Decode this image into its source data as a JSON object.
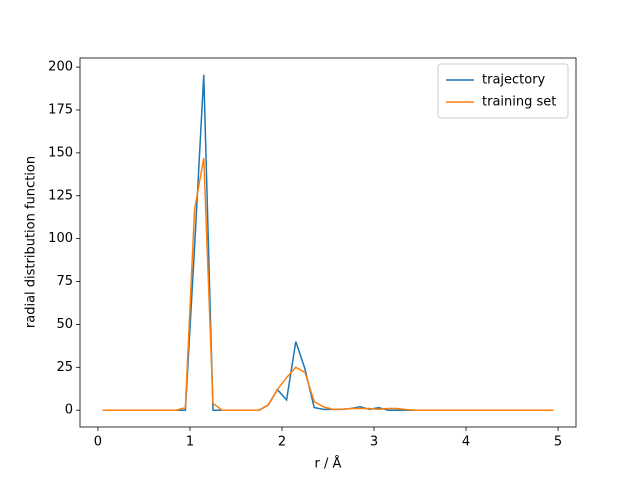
{
  "chart_data": {
    "type": "line",
    "xlabel": "r / Å",
    "ylabel": "radial distribution function",
    "x": [
      0.05,
      0.15,
      0.25,
      0.35,
      0.45,
      0.55,
      0.65,
      0.75,
      0.85,
      0.95,
      1.05,
      1.15,
      1.25,
      1.35,
      1.45,
      1.55,
      1.65,
      1.75,
      1.85,
      1.95,
      2.05,
      2.15,
      2.25,
      2.35,
      2.45,
      2.55,
      2.65,
      2.75,
      2.85,
      2.95,
      3.05,
      3.15,
      3.25,
      3.35,
      3.45,
      3.55,
      3.65,
      3.75,
      3.85,
      3.95,
      4.05,
      4.15,
      4.25,
      4.35,
      4.45,
      4.55,
      4.65,
      4.75,
      4.85,
      4.95
    ],
    "series": [
      {
        "name": "trajectory",
        "color": "#1f77b4",
        "values": [
          0,
          0,
          0,
          0,
          0,
          0,
          0,
          0,
          0,
          0,
          95,
          195.5,
          0,
          0,
          0,
          0,
          0,
          0,
          3,
          12,
          6,
          40,
          24,
          1.5,
          0.5,
          0.5,
          0.5,
          1,
          2,
          0.5,
          1.5,
          0,
          0,
          0,
          0,
          0,
          0,
          0,
          0,
          0,
          0,
          0,
          0,
          0,
          0,
          0,
          0,
          0,
          0,
          0
        ]
      },
      {
        "name": "training set",
        "color": "#ff7f0e",
        "values": [
          0,
          0,
          0,
          0,
          0,
          0,
          0,
          0,
          0,
          1.5,
          117,
          147,
          4,
          0,
          0,
          0,
          0,
          0,
          3,
          12,
          19,
          25,
          22,
          5,
          2,
          0.5,
          0.5,
          1,
          1,
          1,
          0.5,
          1,
          1,
          0.3,
          0,
          0,
          0,
          0,
          0,
          0,
          0,
          0,
          0,
          0,
          0,
          0,
          0,
          0,
          0,
          0
        ]
      }
    ],
    "xlim": [
      -0.195,
      5.195
    ],
    "xticks": [
      0,
      1,
      2,
      3,
      4,
      5
    ],
    "ylim": [
      -9.8,
      205.3
    ],
    "yticks": [
      0,
      25,
      50,
      75,
      100,
      125,
      150,
      175,
      200
    ],
    "legend": "upper right"
  }
}
